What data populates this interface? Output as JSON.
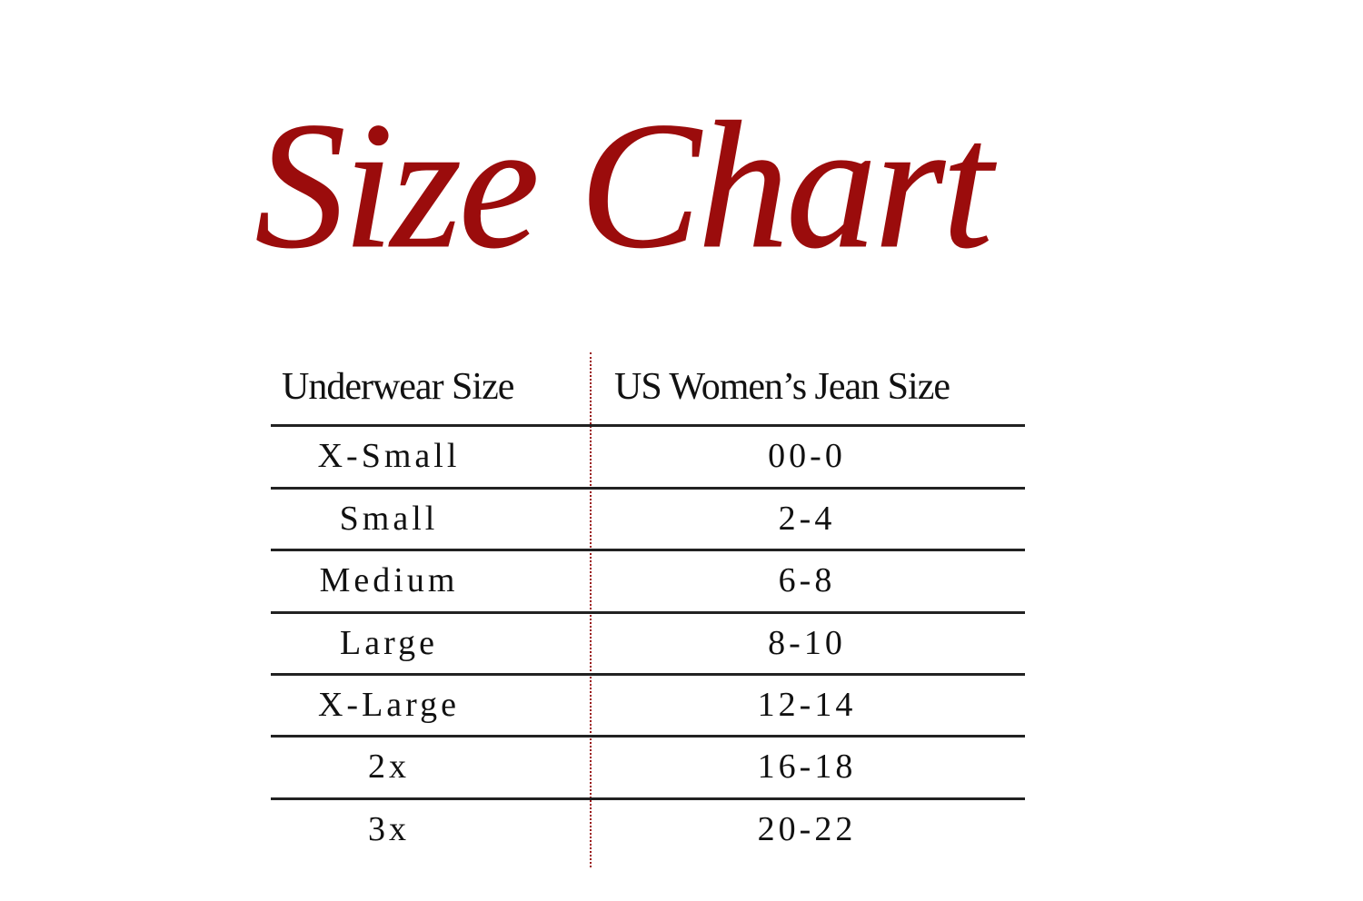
{
  "title": "Size Chart",
  "accent_color": "#9b0c0c",
  "table": {
    "headers": [
      "Underwear Size",
      "US Women’s Jean Size"
    ],
    "rows": [
      [
        "X-Small",
        "00-0"
      ],
      [
        "Small",
        "2-4"
      ],
      [
        "Medium",
        "6-8"
      ],
      [
        "Large",
        "8-10"
      ],
      [
        "X-Large",
        "12-14"
      ],
      [
        "2x",
        "16-18"
      ],
      [
        "3x",
        "20-22"
      ]
    ]
  }
}
